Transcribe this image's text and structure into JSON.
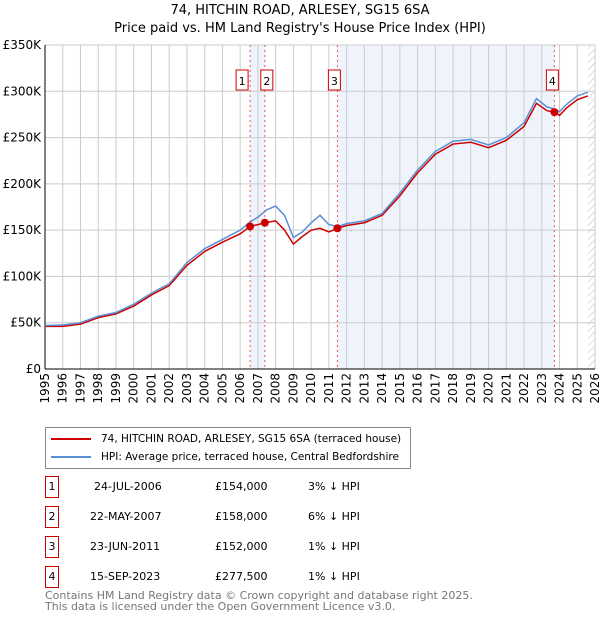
{
  "chart_data": {
    "type": "line",
    "title": "74, HITCHIN ROAD, ARLESEY, SG15 6SA",
    "subtitle": "Price paid vs. HM Land Registry's House Price Index (HPI)",
    "xlim": [
      1995,
      2026
    ],
    "ylim": [
      0,
      350000
    ],
    "yticks": [
      0,
      50000,
      100000,
      150000,
      200000,
      250000,
      300000,
      350000
    ],
    "ytick_labels": [
      "£0",
      "£50K",
      "£100K",
      "£150K",
      "£200K",
      "£250K",
      "£300K",
      "£350K"
    ],
    "xticks": [
      1995,
      1996,
      1997,
      1998,
      1999,
      2000,
      2001,
      2002,
      2003,
      2004,
      2005,
      2006,
      2007,
      2008,
      2009,
      2010,
      2011,
      2012,
      2013,
      2014,
      2015,
      2016,
      2017,
      2018,
      2019,
      2020,
      2021,
      2022,
      2023,
      2024,
      2025,
      2026
    ],
    "grid": true,
    "series": [
      {
        "name": "HPI: Average price, terraced house, Central Bedfordshire",
        "color": "#5b8fd6",
        "x": [
          1995,
          1996,
          1997,
          1998,
          1999,
          2000,
          2001,
          2002,
          2003,
          2004,
          2005,
          2006,
          2006.5,
          2007,
          2007.5,
          2008,
          2008.5,
          2009,
          2009.5,
          2010,
          2010.5,
          2011,
          2011.5,
          2012,
          2013,
          2014,
          2015,
          2016,
          2017,
          2018,
          2019,
          2020,
          2021,
          2022,
          2022.7,
          2023.3,
          2023.7,
          2024,
          2024.4,
          2025,
          2025.6
        ],
        "values": [
          47000,
          47500,
          50000,
          57000,
          61000,
          70000,
          82000,
          92000,
          115000,
          130000,
          140000,
          150000,
          158000,
          164000,
          172000,
          176000,
          166000,
          142000,
          148000,
          158000,
          166000,
          156000,
          154000,
          157000,
          160000,
          168000,
          190000,
          215000,
          235000,
          246000,
          248000,
          242000,
          250000,
          266000,
          292000,
          283000,
          281000,
          278000,
          286000,
          295000,
          299000
        ]
      },
      {
        "name": "74, HITCHIN ROAD, ARLESEY, SG15 6SA (terraced house)",
        "color": "#cc0000",
        "x": [
          1995,
          1996,
          1997,
          1998,
          1999,
          2000,
          2001,
          2002,
          2003,
          2004,
          2005,
          2006,
          2006.56,
          2007,
          2007.39,
          2008,
          2008.5,
          2009,
          2009.5,
          2010,
          2010.5,
          2011,
          2011.48,
          2012,
          2013,
          2014,
          2015,
          2016,
          2017,
          2018,
          2019,
          2020,
          2021,
          2022,
          2022.7,
          2023.3,
          2023.71,
          2024,
          2024.4,
          2025,
          2025.6
        ],
        "values": [
          46000,
          46000,
          48500,
          55500,
          59500,
          68000,
          80000,
          90000,
          112000,
          127000,
          137000,
          146000,
          154000,
          156000,
          158000,
          160000,
          150000,
          135000,
          143000,
          150000,
          152000,
          148000,
          152000,
          155000,
          158000,
          166000,
          187000,
          212000,
          232000,
          243000,
          245000,
          239000,
          247000,
          262000,
          287000,
          279000,
          277500,
          274000,
          282000,
          291000,
          295000
        ]
      }
    ],
    "sales": [
      {
        "id": "1",
        "date": "24-JUL-2006",
        "x": 2006.56,
        "price": 154000,
        "price_label": "£154,000",
        "hpi": "3% ↓ HPI"
      },
      {
        "id": "2",
        "date": "22-MAY-2007",
        "x": 2007.39,
        "price": 158000,
        "price_label": "£158,000",
        "hpi": "6% ↓ HPI"
      },
      {
        "id": "3",
        "date": "23-JUN-2011",
        "x": 2011.48,
        "price": 152000,
        "price_label": "£152,000",
        "hpi": "1% ↓ HPI"
      },
      {
        "id": "4",
        "date": "15-SEP-2023",
        "x": 2023.71,
        "price": 277500,
        "price_label": "£277,500",
        "hpi": "1% ↓ HPI"
      }
    ],
    "forecast_from": 2025.6
  },
  "legend": {
    "red": "74, HITCHIN ROAD, ARLESEY, SG15 6SA (terraced house)",
    "blue": "HPI: Average price, terraced house, Central Bedfordshire"
  },
  "footer": {
    "line1": "Contains HM Land Registry data © Crown copyright and database right 2025.",
    "line2": "This data is licensed under the Open Government Licence v3.0."
  }
}
